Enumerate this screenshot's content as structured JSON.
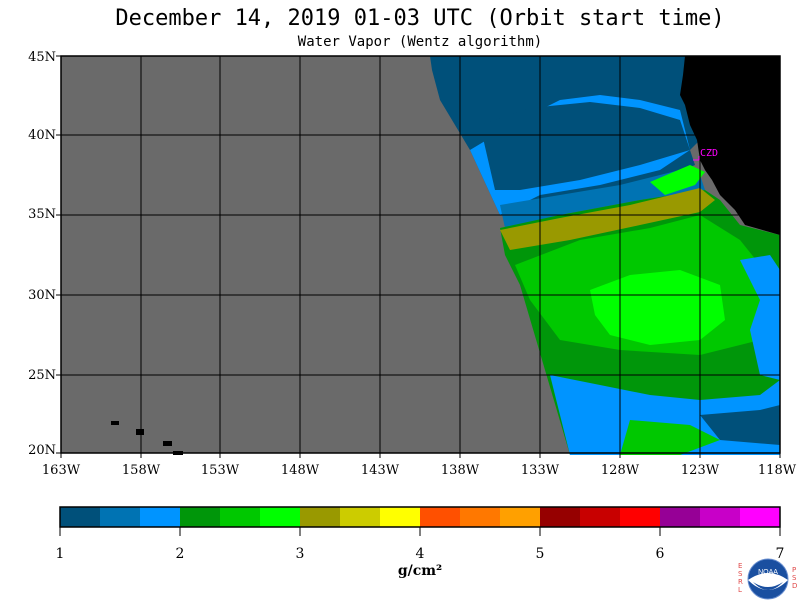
{
  "title": "December 14, 2019  01-03 UTC  (Orbit start time)",
  "subtitle": "Water Vapor (Wentz algorithm)",
  "map": {
    "lat_labels": [
      "45N",
      "40N",
      "35N",
      "30N",
      "25N",
      "20N"
    ],
    "lon_labels": [
      "163W",
      "158W",
      "153W",
      "148W",
      "143W",
      "138W",
      "133W",
      "128W",
      "123W",
      "118W"
    ],
    "station_label": "CZD",
    "colors": {
      "no_data": "#6a6a6a",
      "land": "#000000",
      "station": "#ff00ff"
    }
  },
  "colorbar": {
    "tick_labels": [
      "1",
      "2",
      "3",
      "4",
      "5",
      "6",
      "7"
    ],
    "units": "g/cm²",
    "colors": [
      "#00507a",
      "#0073b3",
      "#0094ff",
      "#00960a",
      "#00c800",
      "#00ff00",
      "#999900",
      "#cccc00",
      "#ffff00",
      "#ff5000",
      "#ff7800",
      "#ffa000",
      "#960000",
      "#c80000",
      "#ff0000",
      "#960096",
      "#c800c8",
      "#ff00ff"
    ]
  },
  "logo": {
    "left_letters": [
      "E",
      "S",
      "R",
      "L"
    ],
    "right_letters": [
      "P",
      "S",
      "D"
    ],
    "center_text": "NOAA"
  }
}
